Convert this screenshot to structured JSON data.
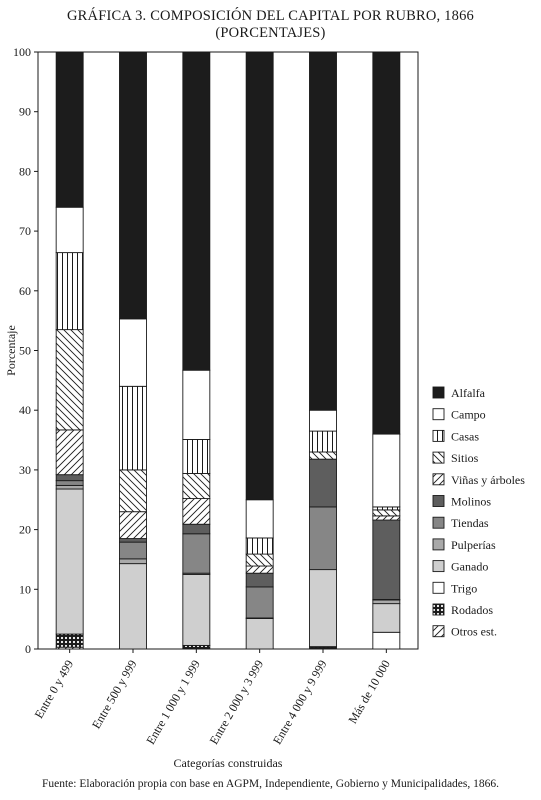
{
  "title_line1": "GRÁFICA 3. COMPOSICIÓN DEL CAPITAL POR RUBRO, 1866",
  "title_line2": "(PORCENTAJES)",
  "source": "Fuente: Elaboración propia con base en AGPM, Independiente, Gobierno y Municipalidades, 1866.",
  "chart_data": {
    "type": "bar",
    "stacked": true,
    "ylabel": "Porcentaje",
    "xlabel": "Categorías construidas",
    "ylim": [
      0,
      100
    ],
    "yticks": [
      0,
      10,
      20,
      30,
      40,
      50,
      60,
      70,
      80,
      90,
      100
    ],
    "categories": [
      "Entre 0 y 499",
      "Entre 500 y 999",
      "Entre 1 000 y 1 999",
      "Entre 2 000 y 3 999",
      "Entre 4 000 y 9 999",
      "Más de 10 000"
    ],
    "legend_position": "right",
    "series": [
      {
        "name": "Otros est.",
        "pattern": "hatch-fwd",
        "values": [
          0.3,
          0.0,
          0.0,
          0.0,
          0.0,
          0.0
        ]
      },
      {
        "name": "Rodados",
        "pattern": "dots",
        "values": [
          2.2,
          0.0,
          0.6,
          0.0,
          0.4,
          0.0
        ]
      },
      {
        "name": "Trigo",
        "pattern": "white",
        "values": [
          0.0,
          0.0,
          0.0,
          0.0,
          0.0,
          2.8
        ]
      },
      {
        "name": "Ganado",
        "pattern": "light-gray",
        "values": [
          24.3,
          14.3,
          11.9,
          5.1,
          12.9,
          4.8
        ]
      },
      {
        "name": "Pulperías",
        "pattern": "mid-gray",
        "values": [
          0.6,
          0.8,
          0.2,
          0.1,
          0.0,
          0.6
        ]
      },
      {
        "name": "Tiendas",
        "pattern": "gray",
        "values": [
          0.8,
          2.8,
          6.6,
          5.2,
          10.5,
          0.1
        ]
      },
      {
        "name": "Molinos",
        "pattern": "dark-gray",
        "values": [
          1.0,
          0.6,
          1.6,
          2.3,
          8.0,
          13.3
        ]
      },
      {
        "name": "Viñas y árboles",
        "pattern": "hatch-fwd",
        "values": [
          7.5,
          4.5,
          4.3,
          1.2,
          0.0,
          0.7
        ]
      },
      {
        "name": "Sitios",
        "pattern": "hatch-back",
        "values": [
          16.8,
          7.0,
          4.2,
          2.0,
          1.2,
          1.0
        ]
      },
      {
        "name": "Casas",
        "pattern": "vlines",
        "values": [
          12.9,
          14.0,
          5.7,
          2.7,
          3.5,
          0.5
        ]
      },
      {
        "name": "Campo",
        "pattern": "white",
        "values": [
          7.6,
          11.3,
          11.6,
          6.4,
          3.5,
          12.2
        ]
      },
      {
        "name": "Alfalfa",
        "pattern": "black",
        "values": [
          26.0,
          44.7,
          53.3,
          75.0,
          60.0,
          64.0
        ]
      }
    ],
    "legend_order": [
      "Alfalfa",
      "Campo",
      "Casas",
      "Sitios",
      "Viñas y árboles",
      "Molinos",
      "Tiendas",
      "Pulperías",
      "Ganado",
      "Trigo",
      "Rodados",
      "Otros est."
    ]
  }
}
